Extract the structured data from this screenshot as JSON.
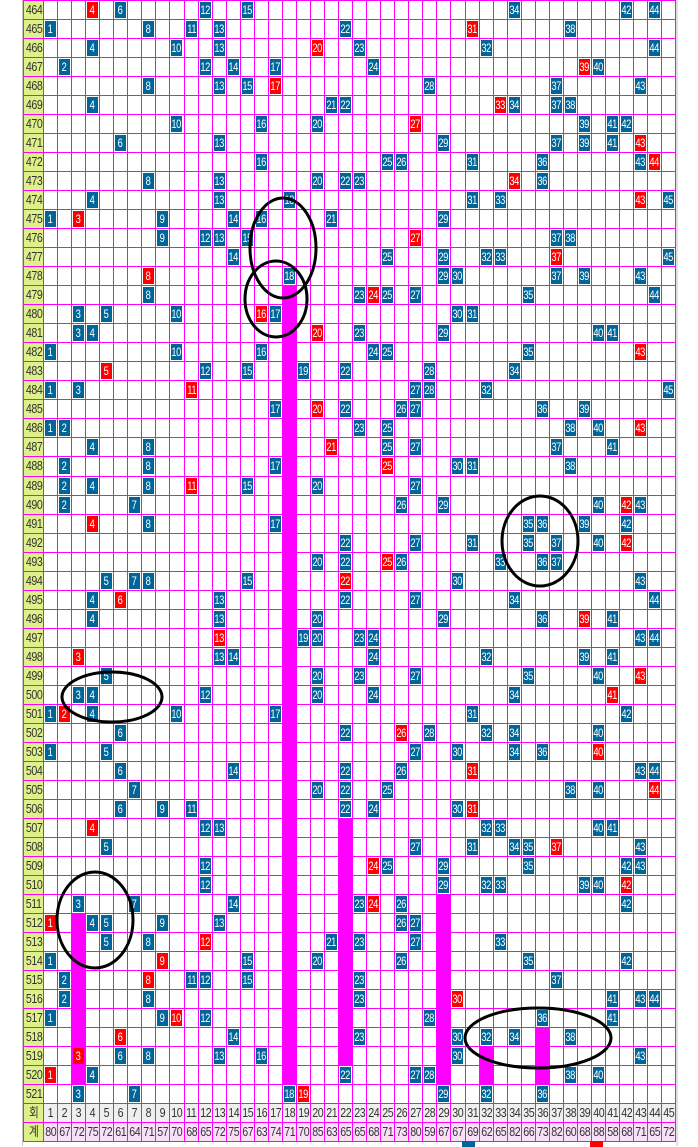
{
  "chart_data": {
    "type": "table",
    "colors": {
      "drawn": "#006699",
      "bonus": "#ff0000",
      "streak_bar": "#ff00ff",
      "grid": "#ff00ff",
      "round_label_bg": "#ddf08a"
    },
    "rows": [
      {
        "round": "464",
        "blue": [
          6,
          12,
          15,
          34,
          42,
          44
        ],
        "bonus": 4
      },
      {
        "round": "465",
        "blue": [
          1,
          8,
          11,
          13,
          22,
          38
        ],
        "bonus": 31
      },
      {
        "round": "466",
        "blue": [
          4,
          10,
          13,
          23,
          32,
          44
        ],
        "bonus": 20
      },
      {
        "round": "467",
        "blue": [
          2,
          12,
          14,
          17,
          24,
          40
        ],
        "bonus": 39
      },
      {
        "round": "468",
        "blue": [
          8,
          13,
          15,
          28,
          37,
          43
        ],
        "bonus": 17
      },
      {
        "round": "469",
        "blue": [
          4,
          21,
          22,
          34,
          37,
          38
        ],
        "bonus": 33
      },
      {
        "round": "470",
        "blue": [
          10,
          16,
          20,
          39,
          41,
          42
        ],
        "bonus": 27
      },
      {
        "round": "471",
        "blue": [
          6,
          13,
          29,
          37,
          39,
          41
        ],
        "bonus": 43
      },
      {
        "round": "472",
        "blue": [
          16,
          25,
          26,
          31,
          36,
          43
        ],
        "bonus": 44
      },
      {
        "round": "473",
        "blue": [
          8,
          13,
          20,
          22,
          23,
          36
        ],
        "bonus": 34
      },
      {
        "round": "474",
        "blue": [
          4,
          13,
          18,
          31,
          33,
          45
        ],
        "bonus": 43
      },
      {
        "round": "475",
        "blue": [
          1,
          9,
          14,
          16,
          21,
          29
        ],
        "bonus": 3
      },
      {
        "round": "476",
        "blue": [
          9,
          12,
          13,
          15,
          37,
          38
        ],
        "bonus": 27
      },
      {
        "round": "477",
        "blue": [
          14,
          25,
          29,
          32,
          33,
          45
        ],
        "bonus": 37
      },
      {
        "round": "478",
        "blue": [
          18,
          29,
          30,
          37,
          39,
          43
        ],
        "bonus": 8
      },
      {
        "round": "479",
        "blue": [
          8,
          23,
          25,
          27,
          35,
          44
        ],
        "bonus": 24
      },
      {
        "round": "480",
        "blue": [
          3,
          5,
          10,
          17,
          30,
          31
        ],
        "bonus": 16
      },
      {
        "round": "481",
        "blue": [
          3,
          4,
          23,
          29,
          40,
          41
        ],
        "bonus": 20
      },
      {
        "round": "482",
        "blue": [
          1,
          10,
          16,
          24,
          25,
          35
        ],
        "bonus": 43
      },
      {
        "round": "483",
        "blue": [
          12,
          15,
          19,
          22,
          28,
          34
        ],
        "bonus": 5
      },
      {
        "round": "484",
        "blue": [
          1,
          3,
          27,
          28,
          32,
          45
        ],
        "bonus": 11
      },
      {
        "round": "485",
        "blue": [
          17,
          22,
          26,
          27,
          36,
          39
        ],
        "bonus": 20
      },
      {
        "round": "486",
        "blue": [
          1,
          2,
          23,
          25,
          38,
          40
        ],
        "bonus": 43
      },
      {
        "round": "487",
        "blue": [
          4,
          8,
          25,
          27,
          37,
          41
        ],
        "bonus": 21
      },
      {
        "round": "488",
        "blue": [
          2,
          8,
          17,
          30,
          31,
          38
        ],
        "bonus": 25
      },
      {
        "round": "489",
        "blue": [
          2,
          4,
          8,
          15,
          20,
          27
        ],
        "bonus": 11
      },
      {
        "round": "490",
        "blue": [
          2,
          7,
          26,
          29,
          40,
          43
        ],
        "bonus": 42
      },
      {
        "round": "491",
        "blue": [
          8,
          17,
          35,
          36,
          39,
          42
        ],
        "bonus": 4
      },
      {
        "round": "492",
        "blue": [
          22,
          27,
          31,
          35,
          37,
          40
        ],
        "bonus": 42
      },
      {
        "round": "493",
        "blue": [
          20,
          22,
          26,
          33,
          36,
          37
        ],
        "bonus": 25
      },
      {
        "round": "494",
        "blue": [
          5,
          7,
          8,
          15,
          30,
          43
        ],
        "bonus": 22
      },
      {
        "round": "495",
        "blue": [
          4,
          13,
          22,
          27,
          34,
          44
        ],
        "bonus": 6
      },
      {
        "round": "496",
        "blue": [
          4,
          13,
          20,
          29,
          36,
          41
        ],
        "bonus": 39
      },
      {
        "round": "497",
        "blue": [
          19,
          20,
          23,
          24,
          43,
          44
        ],
        "bonus": 13
      },
      {
        "round": "498",
        "blue": [
          13,
          14,
          24,
          32,
          39,
          41
        ],
        "bonus": 3
      },
      {
        "round": "499",
        "blue": [
          5,
          20,
          23,
          27,
          35,
          40
        ],
        "bonus": 43
      },
      {
        "round": "500",
        "blue": [
          3,
          4,
          12,
          20,
          24,
          34
        ],
        "bonus": 41
      },
      {
        "round": "501",
        "blue": [
          1,
          4,
          10,
          17,
          31,
          42
        ],
        "bonus": 2
      },
      {
        "round": "502",
        "blue": [
          6,
          22,
          28,
          32,
          34,
          40
        ],
        "bonus": 26
      },
      {
        "round": "503",
        "blue": [
          1,
          5,
          27,
          30,
          34,
          36
        ],
        "bonus": 40
      },
      {
        "round": "504",
        "blue": [
          6,
          14,
          22,
          26,
          43,
          44
        ],
        "bonus": 31
      },
      {
        "round": "505",
        "blue": [
          7,
          20,
          22,
          25,
          38,
          40
        ],
        "bonus": 44
      },
      {
        "round": "506",
        "blue": [
          6,
          9,
          11,
          22,
          24,
          30
        ],
        "bonus": 31
      },
      {
        "round": "507",
        "blue": [
          12,
          13,
          32,
          33,
          40,
          41
        ],
        "bonus": 4
      },
      {
        "round": "508",
        "blue": [
          5,
          27,
          31,
          34,
          35,
          43
        ],
        "bonus": 37
      },
      {
        "round": "509",
        "blue": [
          12,
          25,
          29,
          35,
          42,
          43
        ],
        "bonus": 24
      },
      {
        "round": "510",
        "blue": [
          12,
          29,
          32,
          33,
          39,
          40
        ],
        "bonus": 42
      },
      {
        "round": "511",
        "blue": [
          3,
          7,
          14,
          23,
          26,
          42
        ],
        "bonus": 24
      },
      {
        "round": "512",
        "blue": [
          4,
          5,
          9,
          13,
          26,
          27
        ],
        "bonus": 1
      },
      {
        "round": "513",
        "blue": [
          5,
          8,
          21,
          23,
          27,
          33
        ],
        "bonus": 12
      },
      {
        "round": "514",
        "blue": [
          1,
          15,
          20,
          26,
          35,
          42
        ],
        "bonus": 9
      },
      {
        "round": "515",
        "blue": [
          2,
          11,
          12,
          15,
          23,
          37
        ],
        "bonus": 8
      },
      {
        "round": "516",
        "blue": [
          2,
          8,
          23,
          41,
          43,
          44
        ],
        "bonus": 30
      },
      {
        "round": "517",
        "blue": [
          1,
          9,
          12,
          28,
          36,
          41
        ],
        "bonus": 10
      },
      {
        "round": "518",
        "blue": [
          14,
          23,
          30,
          32,
          34,
          38
        ],
        "bonus": 6
      },
      {
        "round": "519",
        "blue": [
          6,
          8,
          13,
          16,
          30,
          43
        ],
        "bonus": 3
      },
      {
        "round": "520",
        "blue": [
          4,
          22,
          27,
          28,
          38,
          40
        ],
        "bonus": 1
      },
      {
        "round": "521",
        "blue": [
          3,
          7,
          18,
          29,
          32,
          36
        ],
        "bonus": 19
      }
    ],
    "streak_bars": [
      {
        "number": 3,
        "from": 512,
        "to": 520
      },
      {
        "number": 18,
        "from": 479,
        "to": 520
      },
      {
        "number": 22,
        "from": 507,
        "to": 519
      },
      {
        "number": 29,
        "from": 511,
        "to": 520
      },
      {
        "number": 32,
        "from": 519,
        "to": 520
      },
      {
        "number": 36,
        "from": 518,
        "to": 520
      }
    ],
    "header": {
      "label": "회",
      "numbers": [
        1,
        2,
        3,
        4,
        5,
        6,
        7,
        8,
        9,
        10,
        11,
        12,
        13,
        14,
        15,
        16,
        17,
        18,
        19,
        20,
        21,
        22,
        23,
        24,
        25,
        26,
        27,
        28,
        29,
        30,
        31,
        32,
        33,
        34,
        35,
        36,
        37,
        38,
        39,
        40,
        41,
        42,
        43,
        44,
        45
      ]
    },
    "totals": {
      "label": "계",
      "values": [
        80,
        67,
        72,
        75,
        72,
        61,
        64,
        71,
        57,
        70,
        68,
        65,
        72,
        75,
        67,
        63,
        74,
        71,
        70,
        85,
        63,
        65,
        65,
        68,
        71,
        73,
        80,
        59,
        67,
        67,
        69,
        62,
        65,
        82,
        66,
        73,
        82,
        60,
        68,
        88,
        58,
        68,
        71,
        65,
        72
      ]
    },
    "legend": [
      {
        "icon": "blue-square",
        "color": "#006699"
      },
      {
        "icon": "red-square",
        "color": "#ff0000"
      }
    ]
  }
}
